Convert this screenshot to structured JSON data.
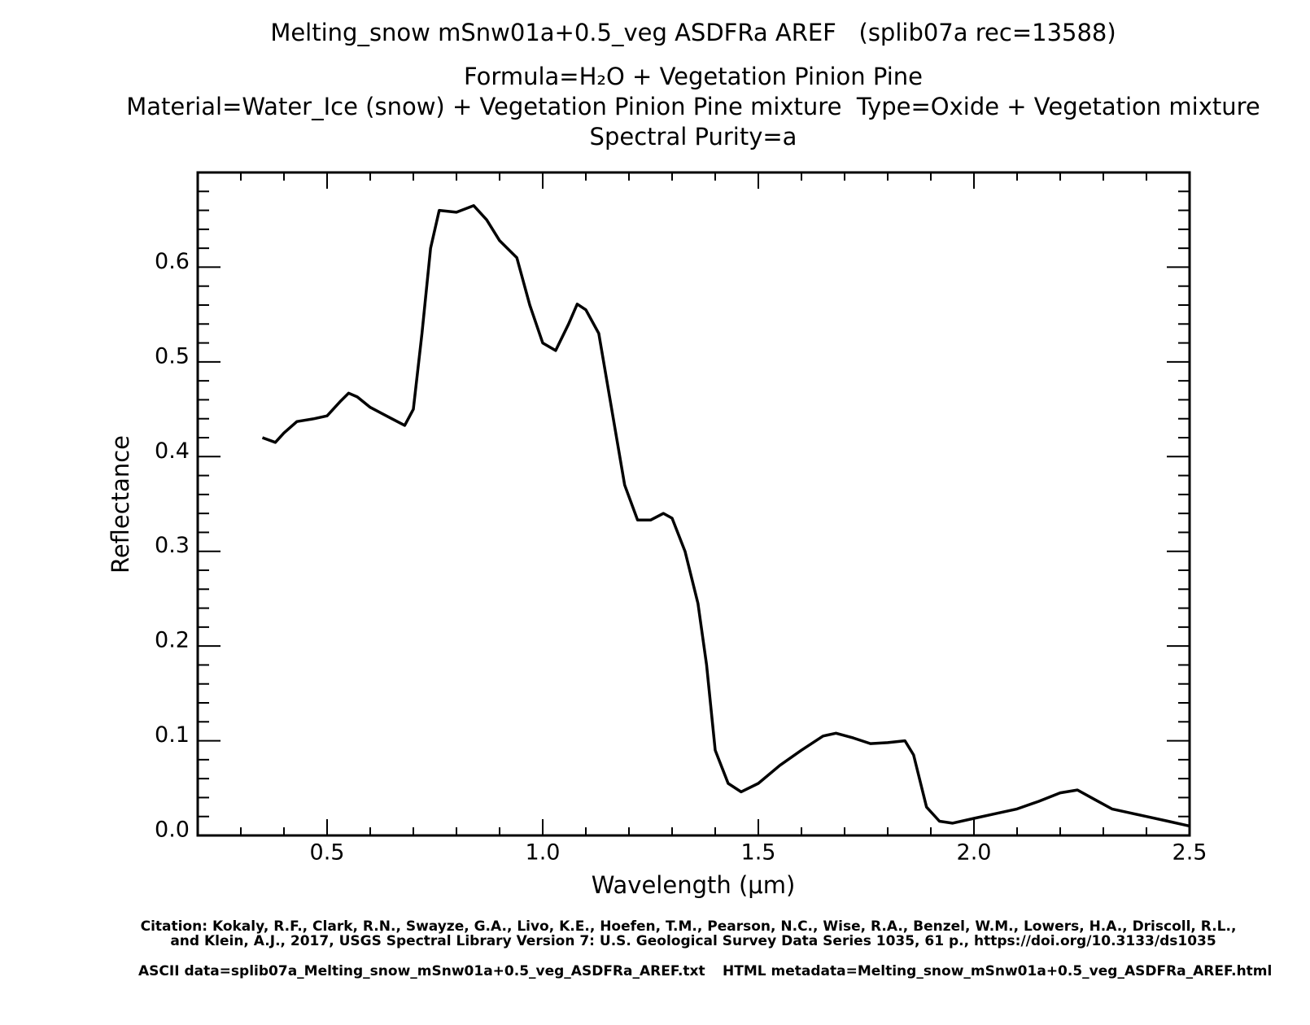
{
  "chart_data": {
    "type": "line",
    "title": "Melting_snow mSnw01a+0.5_veg ASDFRa AREF   (splib07a rec=13588)",
    "subtitles": [
      "Formula=H₂O + Vegetation Pinion Pine",
      "Material=Water_Ice (snow) + Vegetation Pinion Pine mixture  Type=Oxide + Vegetation mixture",
      "Spectral Purity=a"
    ],
    "xlabel": "Wavelength (μm)",
    "ylabel": "Reflectance",
    "citation": [
      "Citation: Kokaly, R.F., Clark, R.N., Swayze, G.A., Livo, K.E., Hoefen, T.M., Pearson, N.C., Wise, R.A., Benzel, W.M., Lowers, H.A., Driscoll, R.L.,",
      "and Klein, A.J., 2017, USGS Spectral Library Version 7: U.S. Geological Survey Data Series 1035, 61 p., https://doi.org/10.3133/ds1035"
    ],
    "ascii_data": "ASCII data=splib07a_Melting_snow_mSnw01a+0.5_veg_ASDFRa_AREF.txt",
    "html_metadata": "HTML metadata=Melting_snow_mSnw01a+0.5_veg_ASDFRa_AREF.html",
    "color": "#000000",
    "xlim": [
      0.2,
      2.5
    ],
    "ylim": [
      0,
      0.7
    ],
    "xticks": [
      {
        "value": 0.5,
        "label": "0.5"
      },
      {
        "value": 1,
        "label": "1.0"
      },
      {
        "value": 1.5,
        "label": "1.5"
      },
      {
        "value": 2,
        "label": "2.0"
      },
      {
        "value": 2.5,
        "label": "2.5"
      }
    ],
    "yticks": [
      {
        "value": 0,
        "label": "0.0"
      },
      0.1,
      0.2,
      0.3,
      0.4,
      0.5,
      0.6
    ],
    "xminorticks": [
      0.3,
      0.4,
      0.6,
      0.7,
      0.8,
      0.9,
      1.1,
      1.2,
      1.3,
      1.4,
      1.6,
      1.7,
      1.8,
      1.9,
      2.1,
      2.2,
      2.3,
      2.4
    ],
    "yminorticks": [
      0.02,
      0.04,
      0.06,
      0.08,
      0.12,
      0.14,
      0.16,
      0.18,
      0.22,
      0.24,
      0.26,
      0.28,
      0.32,
      0.34,
      0.36,
      0.38,
      0.42,
      0.44,
      0.46,
      0.48,
      0.52,
      0.54,
      0.56,
      0.58,
      0.62,
      0.64,
      0.66,
      0.68
    ],
    "x": [
      0.35,
      0.38,
      0.4,
      0.43,
      0.47,
      0.5,
      0.53,
      0.55,
      0.57,
      0.6,
      0.65,
      0.68,
      0.7,
      0.72,
      0.74,
      0.76,
      0.8,
      0.84,
      0.87,
      0.9,
      0.94,
      0.97,
      1.0,
      1.03,
      1.06,
      1.08,
      1.1,
      1.13,
      1.16,
      1.19,
      1.22,
      1.25,
      1.28,
      1.3,
      1.33,
      1.36,
      1.38,
      1.4,
      1.43,
      1.46,
      1.5,
      1.55,
      1.6,
      1.65,
      1.68,
      1.72,
      1.76,
      1.8,
      1.84,
      1.86,
      1.89,
      1.92,
      1.95,
      2.0,
      2.05,
      2.1,
      2.15,
      2.2,
      2.24,
      2.28,
      2.32,
      2.36,
      2.4,
      2.45,
      2.5
    ],
    "values": [
      0.42,
      0.415,
      0.425,
      0.437,
      0.44,
      0.443,
      0.458,
      0.467,
      0.463,
      0.452,
      0.44,
      0.433,
      0.45,
      0.53,
      0.62,
      0.66,
      0.658,
      0.665,
      0.65,
      0.628,
      0.61,
      0.56,
      0.52,
      0.512,
      0.54,
      0.561,
      0.555,
      0.53,
      0.45,
      0.37,
      0.333,
      0.333,
      0.34,
      0.335,
      0.3,
      0.245,
      0.18,
      0.09,
      0.055,
      0.046,
      0.055,
      0.074,
      0.09,
      0.105,
      0.108,
      0.103,
      0.097,
      0.098,
      0.1,
      0.085,
      0.03,
      0.015,
      0.013,
      0.018,
      0.023,
      0.028,
      0.036,
      0.045,
      0.048,
      0.038,
      0.028,
      0.024,
      0.02,
      0.015,
      0.01
    ]
  }
}
